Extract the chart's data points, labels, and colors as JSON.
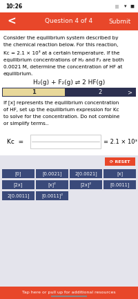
{
  "status_bar_time": "10:26",
  "header_bg": "#E8472A",
  "header_text": "Question 4 of 4",
  "header_submit": "Submit",
  "body_bg": "#FFFFFF",
  "body_text_color": "#000000",
  "body_text_lines": [
    "Consider the equilibrium system described by",
    "the chemical reaction below. For this reaction,",
    "Kc = 2.1 × 10³ at a certain temperature. If the",
    "equilibrium concentrations of H₂ and F₂ are both",
    "0.0021 M, determine the concentration of HF at",
    "equilibrium."
  ],
  "equation": "H₂(g) + F₂(g) ⇌ 2 HF(g)",
  "tab1_label": "1",
  "tab2_label": "2",
  "tab_bg_active": "#E8D89A",
  "tab_bg_dark": "#2C3050",
  "tab_text_active": "#333333",
  "tab_text_inactive": "#FFFFFF",
  "instruction_lines": [
    "If [x] represents the equilibrium concentration",
    "of HF, set up the equilibrium expression for Kc",
    "to solve for the concentration. Do not combine",
    "or simplify terms.."
  ],
  "kc_label": "Kᴄ  =",
  "kc_value": "= 2.1 × 10³",
  "reset_label": "⟳ RESET",
  "reset_bg": "#E8472A",
  "reset_text": "#FFFFFF",
  "button_bg": "#3A4A7A",
  "button_text": "#FFFFFF",
  "buttons_row1": [
    "[0]",
    "[0.0021]",
    "2[0.0021]",
    "[x]"
  ],
  "buttons_row2": [
    "[2x]",
    "[x]²",
    "[2x]²",
    "[0.0011]"
  ],
  "buttons_row3": [
    "2[0.0011]",
    "[0.0011]²"
  ],
  "lower_bg": "#E4E4EC",
  "footer_bg": "#E8472A",
  "footer_text": "Tap here or pull up for additional resources",
  "footer_text_color": "#FFFFFF",
  "status_bar_bg": "#FFFFFF"
}
